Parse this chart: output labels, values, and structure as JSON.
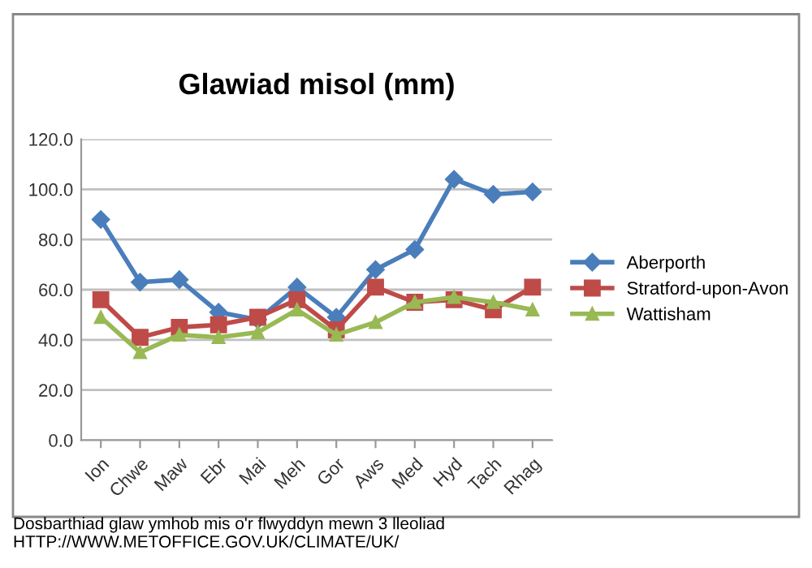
{
  "chart_data": {
    "type": "line",
    "title": "Glawiad misol (mm)",
    "categories": [
      "Ion",
      "Chwe",
      "Maw",
      "Ebr",
      "Mai",
      "Meh",
      "Gor",
      "Aws",
      "Med",
      "Hyd",
      "Tach",
      "Rhag"
    ],
    "series": [
      {
        "name": "Aberporth",
        "color": "#4a7ebb",
        "marker": "diamond",
        "values": [
          88,
          63,
          64,
          51,
          48,
          61,
          49,
          68,
          76,
          104,
          98,
          99
        ]
      },
      {
        "name": "Stratford-upon-Avon",
        "color": "#be4b48",
        "marker": "square",
        "values": [
          56,
          41,
          45,
          46,
          49,
          56,
          44,
          61,
          55,
          56,
          52,
          61
        ]
      },
      {
        "name": "Wattisham",
        "color": "#98b954",
        "marker": "triangle",
        "values": [
          49,
          35,
          42,
          41,
          43,
          52,
          42,
          47,
          55,
          57,
          55,
          52
        ]
      }
    ],
    "ylim": [
      0,
      120
    ],
    "yticks": [
      {
        "value": 0,
        "label": "0.0"
      },
      {
        "value": 20,
        "label": "20.0"
      },
      {
        "value": 40,
        "label": "40.0"
      },
      {
        "value": 60,
        "label": "60.0"
      },
      {
        "value": 80,
        "label": "80.0"
      },
      {
        "value": 100,
        "label": "100.0"
      },
      {
        "value": 120,
        "label": "120.0"
      }
    ],
    "grid": "y",
    "legend": "right",
    "line_style": "solid",
    "annotations": [
      "Dosbarthiad glaw ymhob mis o'r flwyddyn mewn 3 lleoliad HTTP://WWW.METOFFICE.GOV.UK/CLIMATE/UK/"
    ]
  }
}
